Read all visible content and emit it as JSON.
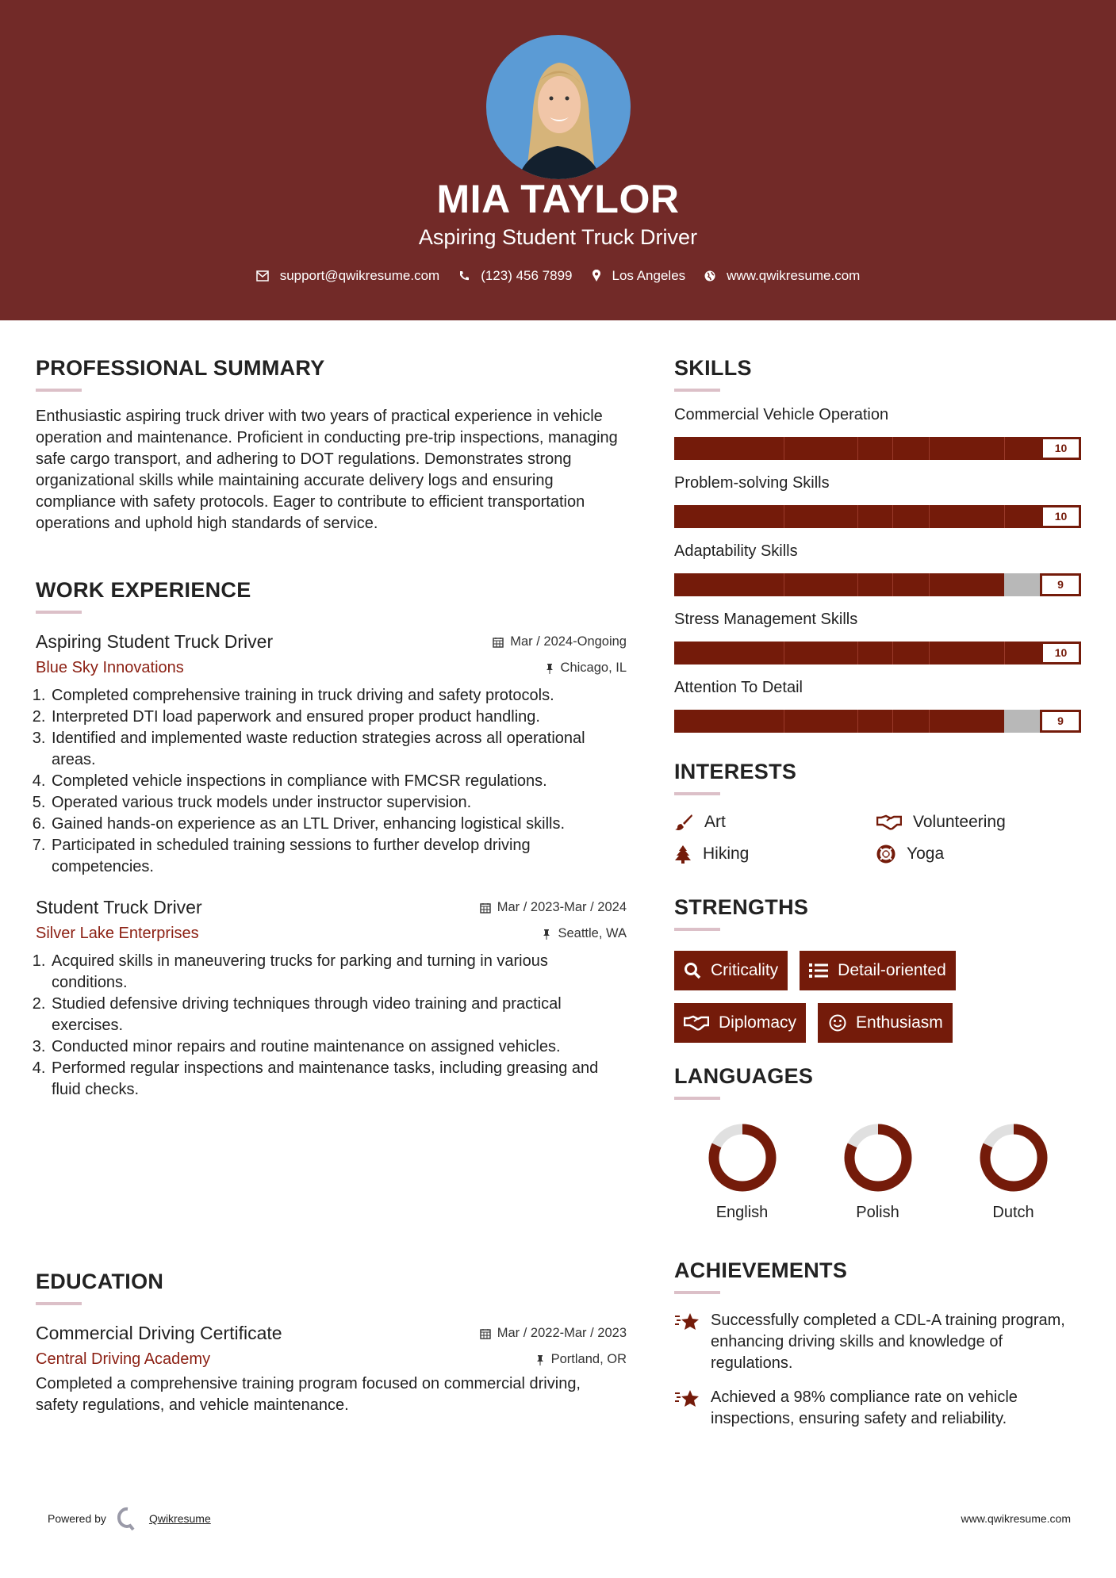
{
  "header": {
    "name": "MIA TAYLOR",
    "title": "Aspiring Student Truck Driver",
    "contact": {
      "email": "support@qwikresume.com",
      "phone": "(123) 456 7899",
      "location": "Los Angeles",
      "website": "www.qwikresume.com"
    }
  },
  "colors": {
    "header_bg": "#722a28",
    "accent": "#741b0a",
    "company": "#8b1f12",
    "underline": "#dcc0c8"
  },
  "summary": {
    "heading": "PROFESSIONAL SUMMARY",
    "text": "Enthusiastic aspiring truck driver with two years of practical experience in vehicle operation and maintenance. Proficient in conducting pre-trip inspections, managing safe cargo transport, and adhering to DOT regulations. Demonstrates strong organizational skills while maintaining accurate delivery logs and ensuring compliance with safety protocols. Eager to contribute to efficient transportation operations and uphold high standards of service."
  },
  "work": {
    "heading": "WORK EXPERIENCE",
    "jobs": [
      {
        "title": "Aspiring Student Truck Driver",
        "dates": "Mar / 2024-Ongoing",
        "company": "Blue Sky Innovations",
        "location": "Chicago, IL",
        "items": [
          "Completed comprehensive training in truck driving and safety protocols.",
          "Interpreted DTI load paperwork and ensured proper product handling.",
          "Identified and implemented waste reduction strategies across all operational areas.",
          "Completed vehicle inspections in compliance with FMCSR regulations.",
          "Operated various truck models under instructor supervision.",
          "Gained hands-on experience as an LTL Driver, enhancing logistical skills.",
          "Participated in scheduled training sessions to further develop driving competencies."
        ]
      },
      {
        "title": "Student Truck Driver",
        "dates": "Mar / 2023-Mar / 2024",
        "company": "Silver Lake Enterprises",
        "location": "Seattle, WA",
        "items": [
          "Acquired skills in maneuvering trucks for parking and turning in various conditions.",
          "Studied defensive driving techniques through video training and practical exercises.",
          "Conducted minor repairs and routine maintenance on assigned vehicles.",
          "Performed regular inspections and maintenance tasks, including greasing and fluid checks."
        ]
      }
    ]
  },
  "education": {
    "heading": "EDUCATION",
    "degree": "Commercial Driving Certificate",
    "dates": "Mar / 2022-Mar / 2023",
    "school": "Central Driving Academy",
    "location": "Portland, OR",
    "description": "Completed a comprehensive training program focused on commercial driving, safety regulations, and vehicle maintenance."
  },
  "skills": {
    "heading": "SKILLS",
    "max": 10,
    "items": [
      {
        "name": "Commercial Vehicle Operation",
        "level": 10,
        "label": "10"
      },
      {
        "name": "Problem-solving Skills",
        "level": 10,
        "label": "10"
      },
      {
        "name": "Adaptability Skills",
        "level": 9,
        "label": "9"
      },
      {
        "name": "Stress Management Skills",
        "level": 10,
        "label": "10"
      },
      {
        "name": "Attention To Detail",
        "level": 9,
        "label": "9"
      }
    ]
  },
  "interests": {
    "heading": "INTERESTS",
    "items": [
      {
        "label": "Art",
        "icon": "paintbrush-icon"
      },
      {
        "label": "Volunteering",
        "icon": "handshake-icon"
      },
      {
        "label": "Hiking",
        "icon": "tree-icon"
      },
      {
        "label": "Yoga",
        "icon": "life-ring-icon"
      }
    ]
  },
  "strengths": {
    "heading": "STRENGTHS",
    "items": [
      {
        "label": "Criticality",
        "icon": "search-icon"
      },
      {
        "label": "Detail-oriented",
        "icon": "list-icon"
      },
      {
        "label": "Diplomacy",
        "icon": "handshake-icon"
      },
      {
        "label": "Enthusiasm",
        "icon": "smile-icon"
      }
    ]
  },
  "languages": {
    "heading": "LANGUAGES",
    "items": [
      {
        "name": "English",
        "level": 0.82
      },
      {
        "name": "Polish",
        "level": 0.82
      },
      {
        "name": "Dutch",
        "level": 0.82
      }
    ]
  },
  "achievements": {
    "heading": "ACHIEVEMENTS",
    "items": [
      "Successfully completed a CDL-A training program, enhancing driving skills and knowledge of regulations.",
      "Achieved a 98% compliance rate on vehicle inspections, ensuring safety and reliability."
    ]
  },
  "footer": {
    "powered_by": "Powered by",
    "brand": "Qwikresume",
    "website": "www.qwikresume.com"
  }
}
